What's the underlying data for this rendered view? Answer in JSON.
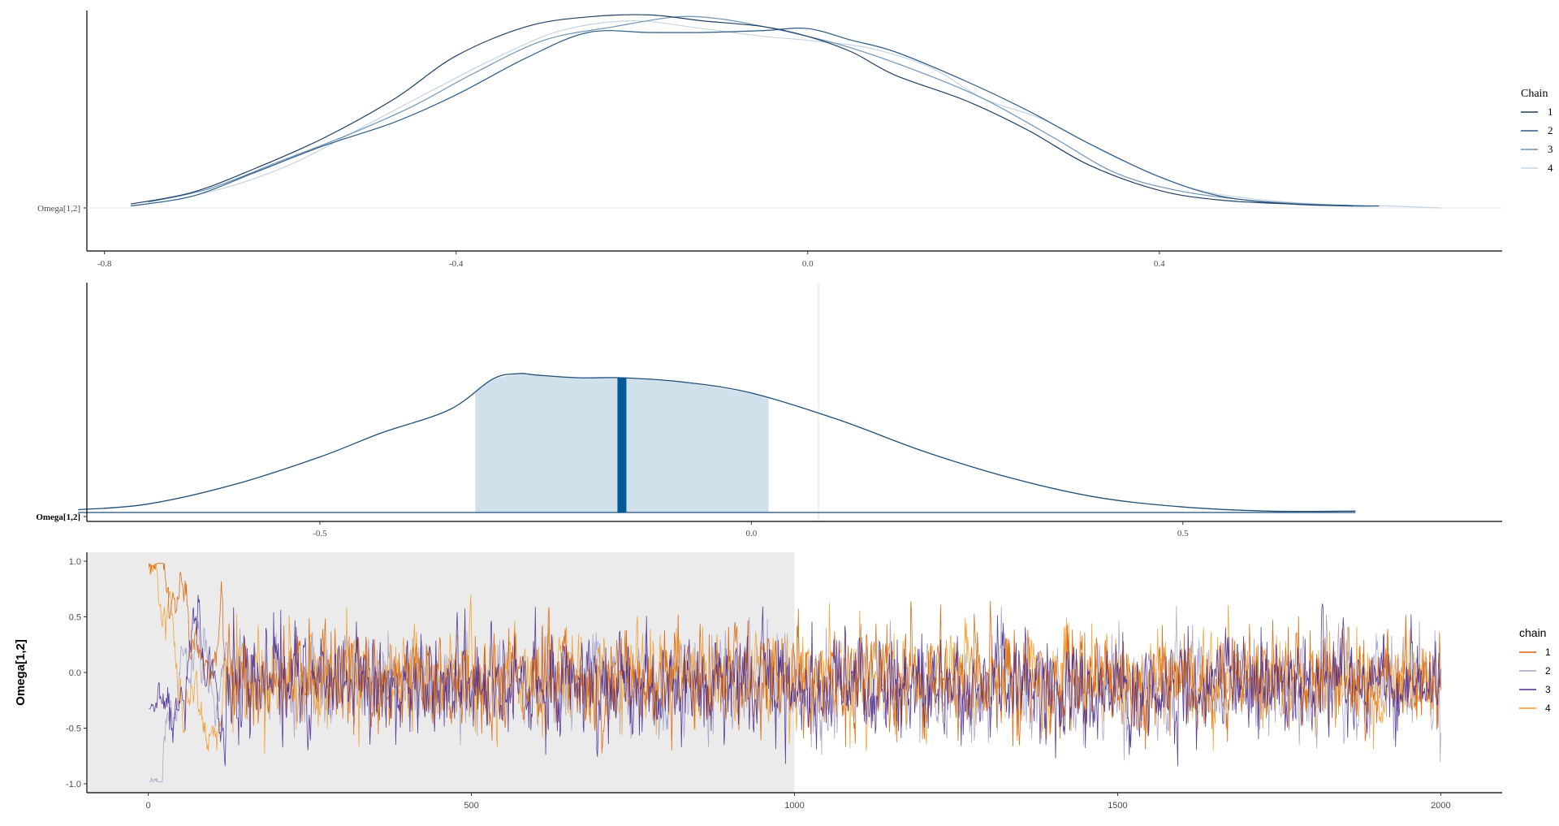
{
  "colors": {
    "axis": "#000000",
    "tick_text": "#4d4d4d",
    "grid_light": "#e5e5e5",
    "warmup_band": "#ebebeb",
    "density_fill": "#d1e1ec",
    "density_line": "#1f4e79",
    "median_bar": "#005b96"
  },
  "chart_data": [
    {
      "panel": "density-overlay",
      "type": "line",
      "title": "",
      "xlabel": "",
      "ylabel": "",
      "ytick_labels": [
        "Omega[1,2]"
      ],
      "xlim": [
        -0.82,
        0.79
      ],
      "xticks": [
        -0.8,
        -0.4,
        0.0,
        0.4
      ],
      "xtick_labels": [
        "-0.8",
        "-0.4",
        "0.0",
        "0.4"
      ],
      "legend": {
        "title": "Chain",
        "placement": "right",
        "entries": [
          "1",
          "2",
          "3",
          "4"
        ]
      },
      "series": [
        {
          "name": "1",
          "color": "#1f3f66",
          "x": [
            -0.77,
            -0.7,
            -0.63,
            -0.55,
            -0.47,
            -0.4,
            -0.32,
            -0.25,
            -0.18,
            -0.12,
            -0.05,
            0.0,
            0.05,
            0.1,
            0.18,
            0.25,
            0.32,
            0.4,
            0.47,
            0.55,
            0.62
          ],
          "y": [
            0.02,
            0.08,
            0.2,
            0.36,
            0.56,
            0.78,
            0.93,
            0.98,
            0.99,
            0.96,
            0.93,
            0.88,
            0.8,
            0.68,
            0.55,
            0.4,
            0.22,
            0.09,
            0.04,
            0.02,
            0.01
          ]
        },
        {
          "name": "2",
          "color": "#2c5a88",
          "x": [
            -0.77,
            -0.7,
            -0.63,
            -0.55,
            -0.47,
            -0.4,
            -0.32,
            -0.25,
            -0.18,
            -0.12,
            -0.05,
            0.0,
            0.05,
            0.1,
            0.18,
            0.25,
            0.32,
            0.4,
            0.47,
            0.55,
            0.62,
            0.65
          ],
          "y": [
            0.01,
            0.06,
            0.18,
            0.32,
            0.44,
            0.58,
            0.77,
            0.9,
            0.9,
            0.9,
            0.91,
            0.92,
            0.86,
            0.8,
            0.65,
            0.5,
            0.33,
            0.16,
            0.06,
            0.02,
            0.01,
            0.01
          ]
        },
        {
          "name": "3",
          "color": "#6d94b8",
          "x": [
            -0.75,
            -0.68,
            -0.6,
            -0.52,
            -0.45,
            -0.38,
            -0.3,
            -0.22,
            -0.15,
            -0.1,
            -0.05,
            0.0,
            0.05,
            0.12,
            0.2,
            0.28,
            0.35,
            0.42,
            0.5,
            0.57,
            0.64
          ],
          "y": [
            0.03,
            0.1,
            0.24,
            0.38,
            0.52,
            0.69,
            0.86,
            0.93,
            0.98,
            0.97,
            0.93,
            0.88,
            0.82,
            0.71,
            0.56,
            0.36,
            0.18,
            0.09,
            0.04,
            0.02,
            0.01
          ]
        },
        {
          "name": "4",
          "color": "#c5d5e4",
          "x": [
            -0.72,
            -0.65,
            -0.58,
            -0.5,
            -0.42,
            -0.35,
            -0.28,
            -0.2,
            -0.12,
            -0.05,
            0.0,
            0.07,
            0.14,
            0.2,
            0.27,
            0.35,
            0.43,
            0.5,
            0.58,
            0.66,
            0.72
          ],
          "y": [
            0.04,
            0.12,
            0.24,
            0.43,
            0.62,
            0.78,
            0.91,
            0.96,
            0.92,
            0.88,
            0.86,
            0.82,
            0.72,
            0.56,
            0.45,
            0.26,
            0.11,
            0.05,
            0.02,
            0.01,
            0.0
          ]
        }
      ]
    },
    {
      "panel": "posterior-area",
      "type": "area",
      "title": "",
      "xlabel": "",
      "ylabel": "",
      "ytick_labels": [
        "Omega[1,2]"
      ],
      "xlim": [
        -0.77,
        0.87
      ],
      "xticks": [
        -0.5,
        0.0,
        0.5
      ],
      "xtick_labels": [
        "-0.5",
        "0.0",
        "0.5"
      ],
      "grid": "vertical line at 0",
      "median": -0.15,
      "interval": [
        -0.32,
        0.02
      ],
      "curve": {
        "x": [
          -0.78,
          -0.7,
          -0.6,
          -0.5,
          -0.43,
          -0.35,
          -0.3,
          -0.27,
          -0.25,
          -0.2,
          -0.15,
          -0.08,
          0.0,
          0.1,
          0.2,
          0.3,
          0.4,
          0.5,
          0.6,
          0.7
        ],
        "y": [
          0.02,
          0.06,
          0.2,
          0.4,
          0.57,
          0.74,
          0.96,
          1.0,
          0.99,
          0.97,
          0.97,
          0.94,
          0.86,
          0.67,
          0.44,
          0.25,
          0.11,
          0.04,
          0.01,
          0.01
        ]
      }
    },
    {
      "panel": "trace",
      "type": "line",
      "title": "",
      "xlabel": "",
      "ylabel": "Omega[1,2]",
      "xlim": [
        -95,
        2095
      ],
      "ylim": [
        -1.08,
        1.08
      ],
      "xticks": [
        0,
        500,
        1000,
        1500,
        2000
      ],
      "xtick_labels": [
        "0",
        "500",
        "1000",
        "1500",
        "2000"
      ],
      "yticks": [
        -1.0,
        -0.5,
        0.0,
        0.5,
        1.0
      ],
      "ytick_labels": [
        "-1.0",
        "-0.5",
        "0.0",
        "0.5",
        "1.0"
      ],
      "warmup_range": [
        0,
        1000
      ],
      "iterations": 2000,
      "legend": {
        "title": "chain",
        "placement": "right",
        "entries": [
          "1",
          "2",
          "3",
          "4"
        ]
      },
      "series": [
        {
          "name": "1",
          "color": "#d95f02",
          "init": 0.95,
          "mean": -0.07,
          "sd": 0.22
        },
        {
          "name": "2",
          "color": "#a59fc9",
          "init": -0.98,
          "mean": -0.09,
          "sd": 0.22
        },
        {
          "name": "3",
          "color": "#4a2a8f",
          "init": -0.3,
          "mean": -0.12,
          "sd": 0.22
        },
        {
          "name": "4",
          "color": "#f39c27",
          "init": 0.93,
          "mean": -0.05,
          "sd": 0.21
        }
      ]
    }
  ]
}
